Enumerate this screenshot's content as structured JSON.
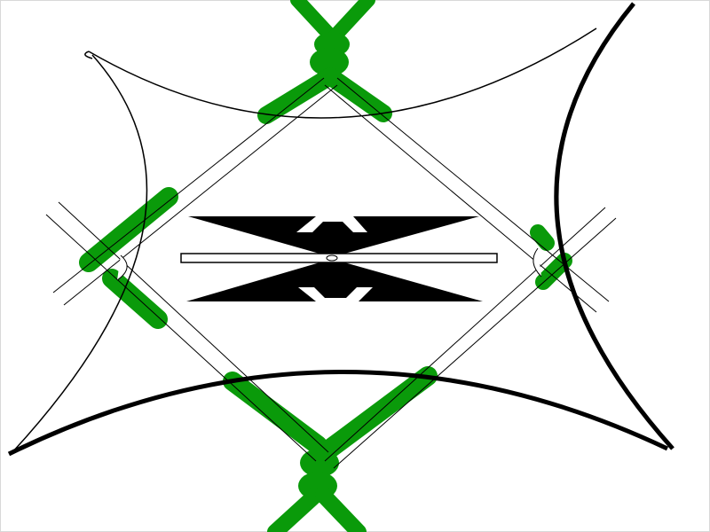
{
  "canvas": {
    "background": "#ffffff",
    "border_color": "#d8d8d8"
  },
  "palette": {
    "ink": "#000000",
    "green": "#0a9a0a",
    "white": "#ffffff"
  },
  "motif": {
    "name": "ornamental-knot-emblem"
  }
}
